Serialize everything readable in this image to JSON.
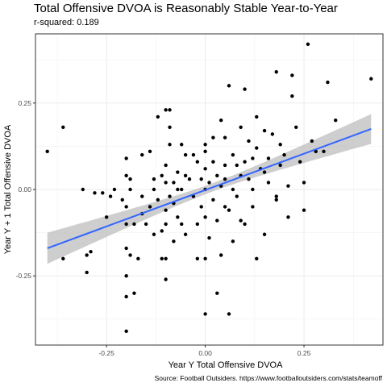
{
  "chart_data": {
    "type": "scatter",
    "title": "Total Offensive DVOA is Reasonably Stable Year-to-Year",
    "subtitle": "r-squared: 0.189",
    "xlabel": "Year Y Total Offensive DVOA",
    "ylabel": "Year Y + 1 Total Offensive DVOA",
    "caption": "Source: Football Outsiders. https://www.footballoutsiders.com/stats/teamoff",
    "xlim": [
      -0.43,
      0.45
    ],
    "ylim": [
      -0.45,
      0.45
    ],
    "x_ticks": [
      -0.25,
      0.0,
      0.25
    ],
    "x_tick_labels": [
      "-0.25",
      "0.00",
      "0.25"
    ],
    "y_ticks": [
      -0.25,
      0.0,
      0.25
    ],
    "y_tick_labels": [
      "-0.25",
      "0.00",
      "0.25"
    ],
    "grid": true,
    "colors": {
      "points": "#000000",
      "fit_line": "#3366FF",
      "ribbon": "#BEBEBE",
      "panel_border": "#333333",
      "grid": "#EBEBEB"
    },
    "regression": {
      "method": "lm",
      "x_range": [
        -0.4,
        0.42
      ],
      "y_at_x_min": -0.17,
      "y_at_x_max": 0.175,
      "ci_halfwidth_at_ends": 0.045,
      "ci_halfwidth_at_center": 0.012,
      "x_center": 0.02
    },
    "points": [
      {
        "x": -0.4,
        "y": 0.11
      },
      {
        "x": -0.36,
        "y": 0.18
      },
      {
        "x": -0.36,
        "y": -0.2
      },
      {
        "x": -0.31,
        "y": 0.0
      },
      {
        "x": -0.3,
        "y": -0.24
      },
      {
        "x": -0.3,
        "y": -0.19
      },
      {
        "x": -0.29,
        "y": -0.18
      },
      {
        "x": -0.28,
        "y": -0.01
      },
      {
        "x": -0.26,
        "y": -0.01
      },
      {
        "x": -0.25,
        "y": -0.08
      },
      {
        "x": -0.24,
        "y": -0.02
      },
      {
        "x": -0.23,
        "y": 0.0
      },
      {
        "x": -0.21,
        "y": -0.03
      },
      {
        "x": -0.2,
        "y": -0.1
      },
      {
        "x": -0.2,
        "y": 0.04
      },
      {
        "x": -0.2,
        "y": -0.05
      },
      {
        "x": -0.2,
        "y": -0.25
      },
      {
        "x": -0.2,
        "y": -0.31
      },
      {
        "x": -0.2,
        "y": -0.41
      },
      {
        "x": -0.2,
        "y": 0.09
      },
      {
        "x": -0.2,
        "y": -0.17
      },
      {
        "x": -0.19,
        "y": -0.19
      },
      {
        "x": -0.19,
        "y": 0.0
      },
      {
        "x": -0.18,
        "y": -0.3
      },
      {
        "x": -0.18,
        "y": -0.1
      },
      {
        "x": -0.17,
        "y": -0.2
      },
      {
        "x": -0.16,
        "y": 0.1
      },
      {
        "x": -0.16,
        "y": -0.02
      },
      {
        "x": -0.15,
        "y": -0.1
      },
      {
        "x": -0.14,
        "y": 0.11
      },
      {
        "x": -0.14,
        "y": -0.05
      },
      {
        "x": -0.13,
        "y": 0.03
      },
      {
        "x": -0.13,
        "y": 0.0
      },
      {
        "x": -0.12,
        "y": -0.03
      },
      {
        "x": -0.12,
        "y": 0.21
      },
      {
        "x": -0.11,
        "y": -0.12
      },
      {
        "x": -0.11,
        "y": 0.04
      },
      {
        "x": -0.11,
        "y": -0.2
      },
      {
        "x": -0.1,
        "y": 0.23
      },
      {
        "x": -0.1,
        "y": -0.1
      },
      {
        "x": -0.1,
        "y": -0.06
      },
      {
        "x": -0.1,
        "y": 0.02
      },
      {
        "x": -0.1,
        "y": -0.26
      },
      {
        "x": -0.1,
        "y": -0.2
      },
      {
        "x": -0.09,
        "y": 0.13
      },
      {
        "x": -0.09,
        "y": 0.23
      },
      {
        "x": -0.09,
        "y": -0.02
      },
      {
        "x": -0.09,
        "y": 0.18
      },
      {
        "x": -0.08,
        "y": 0.02
      },
      {
        "x": -0.08,
        "y": -0.15
      },
      {
        "x": -0.07,
        "y": 0.0
      },
      {
        "x": -0.07,
        "y": 0.05
      },
      {
        "x": -0.07,
        "y": -0.08
      },
      {
        "x": -0.06,
        "y": 0.0
      },
      {
        "x": -0.06,
        "y": -0.1
      },
      {
        "x": -0.05,
        "y": 0.1
      },
      {
        "x": -0.05,
        "y": -0.13
      },
      {
        "x": -0.05,
        "y": 0.04
      },
      {
        "x": -0.04,
        "y": 0.03
      },
      {
        "x": -0.03,
        "y": 0.1
      },
      {
        "x": -0.02,
        "y": -0.2
      },
      {
        "x": -0.02,
        "y": 0.08
      },
      {
        "x": -0.02,
        "y": -0.1
      },
      {
        "x": -0.01,
        "y": 0.03
      },
      {
        "x": -0.01,
        "y": -0.05
      },
      {
        "x": 0.0,
        "y": 0.11
      },
      {
        "x": 0.0,
        "y": -0.36
      },
      {
        "x": 0.0,
        "y": -0.08
      },
      {
        "x": 0.0,
        "y": 0.06
      },
      {
        "x": 0.0,
        "y": -0.2
      },
      {
        "x": 0.0,
        "y": 0.0
      },
      {
        "x": 0.01,
        "y": -0.14
      },
      {
        "x": 0.01,
        "y": 0.02
      },
      {
        "x": 0.02,
        "y": 0.08
      },
      {
        "x": 0.02,
        "y": -0.03
      },
      {
        "x": 0.02,
        "y": 0.15
      },
      {
        "x": 0.03,
        "y": 0.04
      },
      {
        "x": 0.03,
        "y": -0.09
      },
      {
        "x": 0.03,
        "y": -0.3
      },
      {
        "x": 0.04,
        "y": 0.01
      },
      {
        "x": 0.04,
        "y": -0.19
      },
      {
        "x": 0.05,
        "y": 0.07
      },
      {
        "x": 0.05,
        "y": 0.15
      },
      {
        "x": 0.05,
        "y": 0.03
      },
      {
        "x": 0.06,
        "y": -0.06
      },
      {
        "x": 0.06,
        "y": 0.3
      },
      {
        "x": 0.06,
        "y": -0.36
      },
      {
        "x": 0.07,
        "y": 0.0
      },
      {
        "x": 0.07,
        "y": 0.1
      },
      {
        "x": 0.08,
        "y": -0.02
      },
      {
        "x": 0.08,
        "y": 0.07
      },
      {
        "x": 0.09,
        "y": 0.18
      },
      {
        "x": 0.09,
        "y": -0.09
      },
      {
        "x": 0.1,
        "y": 0.08
      },
      {
        "x": 0.1,
        "y": -0.1
      },
      {
        "x": 0.1,
        "y": 0.29
      },
      {
        "x": 0.11,
        "y": 0.03
      },
      {
        "x": 0.11,
        "y": 0.14
      },
      {
        "x": 0.12,
        "y": -0.05
      },
      {
        "x": 0.12,
        "y": 0.0
      },
      {
        "x": 0.13,
        "y": 0.21
      },
      {
        "x": 0.13,
        "y": -0.2
      },
      {
        "x": 0.14,
        "y": 0.06
      },
      {
        "x": 0.15,
        "y": 0.17
      },
      {
        "x": 0.15,
        "y": -0.13
      },
      {
        "x": 0.16,
        "y": 0.09
      },
      {
        "x": 0.16,
        "y": 0.02
      },
      {
        "x": 0.17,
        "y": 0.16
      },
      {
        "x": 0.18,
        "y": 0.34
      },
      {
        "x": 0.18,
        "y": -0.03
      },
      {
        "x": 0.19,
        "y": 0.13
      },
      {
        "x": 0.19,
        "y": 0.07
      },
      {
        "x": 0.2,
        "y": 0.1
      },
      {
        "x": 0.21,
        "y": 0.01
      },
      {
        "x": 0.21,
        "y": -0.08
      },
      {
        "x": 0.22,
        "y": 0.27
      },
      {
        "x": 0.22,
        "y": 0.33
      },
      {
        "x": 0.23,
        "y": 0.18
      },
      {
        "x": 0.24,
        "y": 0.08
      },
      {
        "x": 0.25,
        "y": -0.06
      },
      {
        "x": 0.25,
        "y": 0.02
      },
      {
        "x": 0.26,
        "y": 0.42
      },
      {
        "x": 0.27,
        "y": 0.14
      },
      {
        "x": 0.3,
        "y": 0.11
      },
      {
        "x": 0.31,
        "y": 0.31
      },
      {
        "x": 0.33,
        "y": 0.2
      },
      {
        "x": 0.42,
        "y": 0.32
      },
      {
        "x": -0.19,
        "y": 0.03
      },
      {
        "x": -0.1,
        "y": 0.07
      },
      {
        "x": 0.04,
        "y": 0.2
      },
      {
        "x": 0.12,
        "y": 0.09
      },
      {
        "x": -0.03,
        "y": -0.02
      },
      {
        "x": 0.07,
        "y": -0.15
      },
      {
        "x": -0.13,
        "y": -0.13
      },
      {
        "x": 0.15,
        "y": 0.05
      },
      {
        "x": -0.06,
        "y": 0.13
      },
      {
        "x": 0.09,
        "y": 0.04
      },
      {
        "x": 0.0,
        "y": 0.13
      },
      {
        "x": -0.16,
        "y": -0.07
      },
      {
        "x": 0.18,
        "y": -0.02
      },
      {
        "x": 0.28,
        "y": 0.11
      },
      {
        "x": 0.13,
        "y": 0.12
      },
      {
        "x": -0.08,
        "y": -0.04
      },
      {
        "x": 0.05,
        "y": -0.05
      }
    ]
  }
}
